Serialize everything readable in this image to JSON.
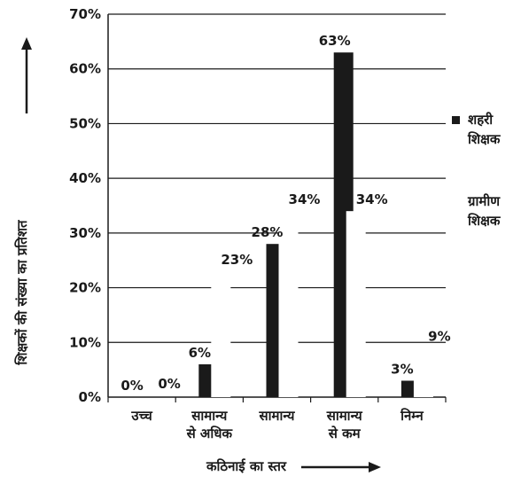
{
  "chart_data": {
    "type": "bar",
    "ylabel": "शिक्षकों की संख्या का प्रतिशत",
    "xlabel": "कठिनाई का स्तर",
    "ylim": [
      0,
      70
    ],
    "yticks": [
      "0%",
      "10%",
      "20%",
      "30%",
      "40%",
      "50%",
      "60%",
      "70%"
    ],
    "categories": [
      [
        "उच्च"
      ],
      [
        "सामान्य",
        "से अधिक"
      ],
      [
        "सामान्य"
      ],
      [
        "सामान्य",
        "से कम"
      ],
      [
        "निम्न"
      ]
    ],
    "series": [
      {
        "name": "शहरी शिक्षक",
        "color": "#1a1a1a",
        "values": [
          0,
          6,
          28,
          63,
          3
        ],
        "labels": [
          "0%",
          "6%",
          "28%",
          "63%",
          "3%"
        ]
      },
      {
        "name": "ग्रामीण शिक्षक",
        "color": "#ffffff",
        "values": [
          0,
          23,
          34,
          34,
          9
        ],
        "labels": [
          "0%",
          "23%",
          "34%",
          "34%",
          "9%"
        ]
      }
    ],
    "legend_position": "right",
    "grid": true
  }
}
